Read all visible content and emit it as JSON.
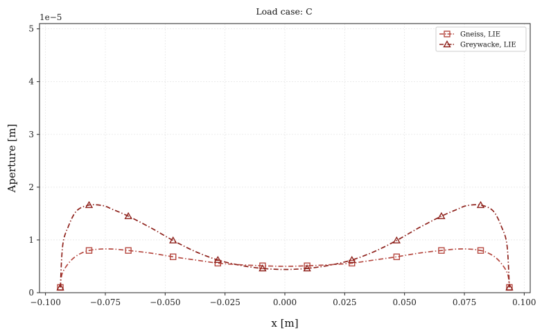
{
  "chart_data": {
    "type": "line",
    "title": "Load case: C",
    "xlabel": "x [m]",
    "ylabel": "Aperture [m]",
    "y_offset_label": "1e−5",
    "xlim": [
      -0.1025,
      0.1025
    ],
    "ylim": [
      0,
      5.1
    ],
    "xticks": [
      -0.1,
      -0.075,
      -0.05,
      -0.025,
      0.0,
      0.025,
      0.05,
      0.075,
      0.1
    ],
    "xtick_labels": [
      "−0.100",
      "−0.075",
      "−0.050",
      "−0.025",
      "0.000",
      "0.025",
      "0.050",
      "0.075",
      "0.100"
    ],
    "yticks": [
      0,
      1,
      2,
      3,
      4,
      5
    ],
    "ytick_labels": [
      "0",
      "1",
      "2",
      "3",
      "4",
      "5"
    ],
    "grid": true,
    "legend_position": "top-right",
    "series": [
      {
        "name": "Gneiss, LIE",
        "color": "#b5473f",
        "marker": "square",
        "line_style": "dash-dot",
        "x": [
          -0.0938,
          -0.0931,
          -0.0905,
          -0.087,
          -0.0818,
          -0.074,
          -0.0654,
          -0.056,
          -0.0467,
          -0.0374,
          -0.028,
          -0.0187,
          -0.0093,
          0.0,
          0.0093,
          0.0187,
          0.028,
          0.0374,
          0.0467,
          0.056,
          0.0654,
          0.074,
          0.0818,
          0.087,
          0.0905,
          0.0931,
          0.0938
        ],
        "y": [
          0.1,
          0.35,
          0.55,
          0.7,
          0.8,
          0.83,
          0.8,
          0.75,
          0.68,
          0.62,
          0.56,
          0.53,
          0.51,
          0.5,
          0.51,
          0.53,
          0.56,
          0.62,
          0.68,
          0.75,
          0.8,
          0.83,
          0.8,
          0.7,
          0.55,
          0.35,
          0.1
        ],
        "marker_x": [
          -0.0938,
          -0.0818,
          -0.0654,
          -0.0467,
          -0.028,
          -0.0093,
          0.0093,
          0.028,
          0.0467,
          0.0654,
          0.0818,
          0.0938
        ],
        "marker_y": [
          0.1,
          0.8,
          0.8,
          0.68,
          0.56,
          0.51,
          0.51,
          0.56,
          0.68,
          0.8,
          0.8,
          0.1
        ]
      },
      {
        "name": "Greywacke, LIE",
        "color": "#8e211b",
        "marker": "triangle",
        "line_style": "dash-dot",
        "x": [
          -0.0938,
          -0.0928,
          -0.0905,
          -0.087,
          -0.0818,
          -0.076,
          -0.072,
          -0.0654,
          -0.056,
          -0.0467,
          -0.0374,
          -0.028,
          -0.0187,
          -0.0093,
          0.0,
          0.0093,
          0.0187,
          0.028,
          0.0374,
          0.0467,
          0.056,
          0.0654,
          0.072,
          0.076,
          0.0818,
          0.087,
          0.0905,
          0.0928,
          0.0938
        ],
        "y": [
          0.1,
          0.9,
          1.25,
          1.55,
          1.66,
          1.65,
          1.58,
          1.45,
          1.23,
          0.99,
          0.78,
          0.62,
          0.52,
          0.46,
          0.44,
          0.46,
          0.52,
          0.62,
          0.78,
          0.99,
          1.23,
          1.45,
          1.58,
          1.65,
          1.66,
          1.55,
          1.25,
          0.9,
          0.1
        ],
        "marker_x": [
          -0.0938,
          -0.0818,
          -0.0654,
          -0.0467,
          -0.028,
          -0.0093,
          0.0093,
          0.028,
          0.0467,
          0.0654,
          0.0818,
          0.0938
        ],
        "marker_y": [
          0.1,
          1.66,
          1.45,
          0.99,
          0.62,
          0.46,
          0.46,
          0.62,
          0.99,
          1.45,
          1.66,
          0.1
        ]
      }
    ]
  }
}
